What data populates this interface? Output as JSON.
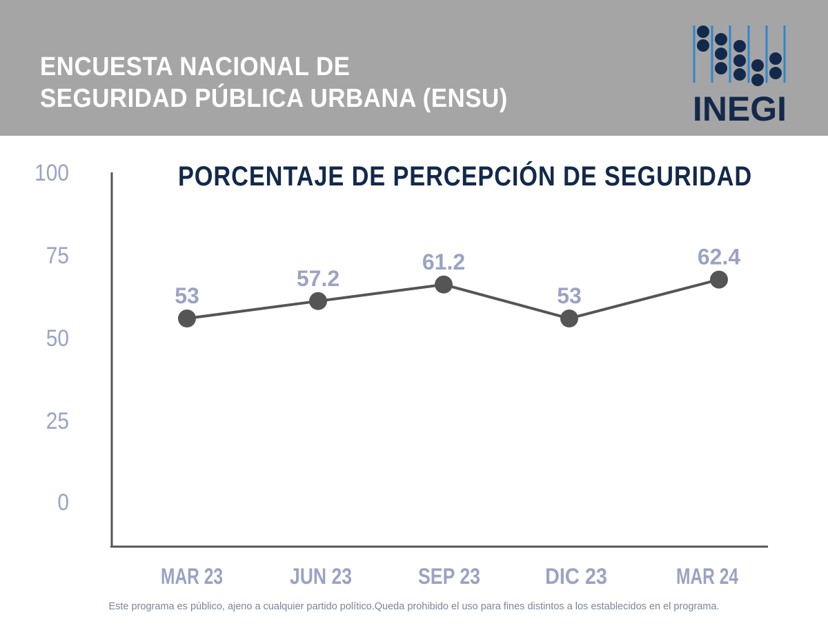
{
  "header": {
    "title_line1": "ENCUESTA NACIONAL DE",
    "title_line2": "SEGURIDAD PÚBLICA URBANA (ENSU)",
    "logo_text": "INEGI"
  },
  "footer": {
    "disclaimer": "Este programa es público, ajeno a cualquier partido político.Queda prohibido el uso para fines distintos a los establecidos en el programa."
  },
  "colors": {
    "header_bg": "#a5a5a5",
    "title": "#13294b",
    "axis_text": "#9aa3c2",
    "line": "#555555",
    "logo_dots": "#13294b",
    "logo_lines": "#2f86cf"
  },
  "chart_data": {
    "type": "line",
    "title": "PORCENTAJE DE PERCEPCIÓN DE SEGURIDAD",
    "categories": [
      "MAR 23",
      "JUN 23",
      "SEP 23",
      "DIC 23",
      "MAR 24"
    ],
    "values": [
      53,
      57.2,
      61.2,
      53,
      62.4
    ],
    "data_labels": [
      "53",
      "57.2",
      "61.2",
      "53",
      "62.4"
    ],
    "yticks": [
      "100",
      "75",
      "50",
      "25",
      "0"
    ],
    "ylim": [
      0,
      100
    ],
    "xlabel": "",
    "ylabel": "",
    "grid": false
  }
}
